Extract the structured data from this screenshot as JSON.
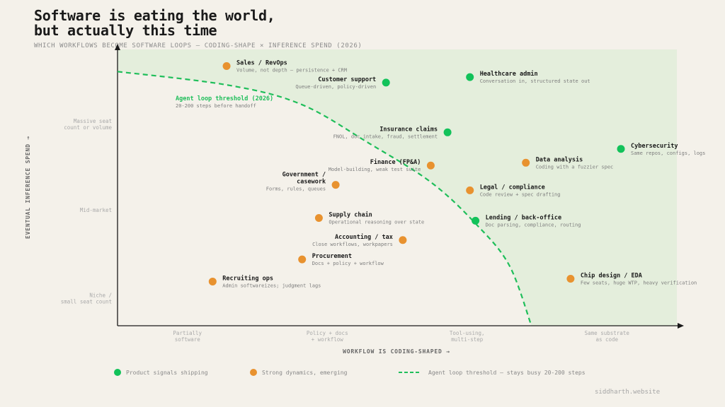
{
  "title_lines": [
    "Software is eating the world,",
    "but actually this time"
  ],
  "subtitle": "WHICH WORKFLOWS BECOME SOFTWARE LOOPS — CODING-SHAPE × INFERENCE SPEND (2026)",
  "footer": "siddharth.website",
  "colors": {
    "shipping": "#12c25a",
    "emerging": "#e8922f",
    "threshold": "#1fbe5a",
    "region": "#e4eedc",
    "axis": "#1a1a1a",
    "tick_text": "#aaaaaa",
    "label_text": "#1a1a1a",
    "desc_text": "#7d7d7d"
  },
  "chart_data": {
    "type": "scatter",
    "xlabel": "WORKFLOW IS CODING-SHAPED →",
    "ylabel": "EVENTUAL INFERENCE SPEND →",
    "xlim": [
      0,
      100
    ],
    "ylim": [
      0,
      100
    ],
    "grid": false,
    "x_ticks": [
      {
        "value": 12.5,
        "label": [
          "Partially",
          "software"
        ]
      },
      {
        "value": 37.5,
        "label": [
          "Policy + docs",
          "+ workflow"
        ]
      },
      {
        "value": 62.5,
        "label": [
          "Tool-using,",
          "multi-step"
        ]
      },
      {
        "value": 87.5,
        "label": [
          "Same substrate",
          "as code"
        ]
      }
    ],
    "y_ticks": [
      {
        "value": 73,
        "label": [
          "Massive seat",
          "count or volume"
        ]
      },
      {
        "value": 42,
        "label": [
          "Mid-market"
        ]
      },
      {
        "value": 10,
        "label": [
          "Niche /",
          "small seat count"
        ]
      }
    ],
    "threshold": {
      "label": "Agent loop threshold (2026)",
      "sublabel": "20-200 steps before handoff",
      "points": [
        [
          0,
          92
        ],
        [
          20,
          87
        ],
        [
          33,
          80
        ],
        [
          45,
          66
        ],
        [
          56,
          52
        ],
        [
          64,
          37
        ],
        [
          70,
          22
        ],
        [
          74,
          0
        ]
      ]
    },
    "series": [
      {
        "name": "Product signals shipping",
        "key": "shipping",
        "points": [
          {
            "label": [
              "Customer support"
            ],
            "desc": "Queue-driven, policy-driven",
            "x": 48,
            "y": 88,
            "side": "left"
          },
          {
            "label": [
              "Healthcare admin"
            ],
            "desc": "Conversation in, structured state out",
            "x": 63,
            "y": 90,
            "side": "right"
          },
          {
            "label": [
              "Insurance claims"
            ],
            "desc": "FNOL, doc intake, fraud, settlement",
            "x": 59,
            "y": 70,
            "side": "left"
          },
          {
            "label": [
              "Cybersecurity"
            ],
            "desc": "Same repos, configs, logs",
            "x": 90,
            "y": 64,
            "side": "right"
          },
          {
            "label": [
              "Lending / back-office"
            ],
            "desc": "Doc parsing, compliance, routing",
            "x": 64,
            "y": 38,
            "side": "right"
          }
        ]
      },
      {
        "name": "Strong dynamics, emerging",
        "key": "emerging",
        "points": [
          {
            "label": [
              "Sales / RevOps"
            ],
            "desc": "Volume, not depth — persistence + CRM",
            "x": 19.5,
            "y": 94,
            "side": "right"
          },
          {
            "label": [
              "Finance (FP&A)"
            ],
            "desc": "Model-building, weak test suite",
            "x": 56,
            "y": 58,
            "side": "left"
          },
          {
            "label": [
              "Data analysis"
            ],
            "desc": "Coding with a fuzzier spec",
            "x": 73,
            "y": 59,
            "side": "right"
          },
          {
            "label": [
              "Government /",
              "casework"
            ],
            "desc": "Forms, rules, queues",
            "x": 39,
            "y": 51,
            "side": "left"
          },
          {
            "label": [
              "Legal / compliance"
            ],
            "desc": "Code review + spec drafting",
            "x": 63,
            "y": 49,
            "side": "right"
          },
          {
            "label": [
              "Supply chain"
            ],
            "desc": "Operational reasoning over state",
            "x": 36,
            "y": 39,
            "side": "right"
          },
          {
            "label": [
              "Accounting / tax"
            ],
            "desc": "Close workflows, workpapers",
            "x": 51,
            "y": 31,
            "side": "left"
          },
          {
            "label": [
              "Procurement"
            ],
            "desc": "Docs + policy + workflow",
            "x": 33,
            "y": 24,
            "side": "right"
          },
          {
            "label": [
              "Recruiting ops"
            ],
            "desc": "Admin softwareizes; judgment lags",
            "x": 17,
            "y": 16,
            "side": "right"
          },
          {
            "label": [
              "Chip design / EDA"
            ],
            "desc": "Few seats, huge WTP, heavy verification",
            "x": 81,
            "y": 17,
            "side": "right"
          }
        ]
      }
    ]
  },
  "legend": [
    {
      "key": "shipping",
      "text": "Product signals shipping"
    },
    {
      "key": "emerging",
      "text": "Strong dynamics, emerging"
    },
    {
      "key": "threshold",
      "text": "Agent loop threshold — stays busy 20-200 steps"
    }
  ]
}
